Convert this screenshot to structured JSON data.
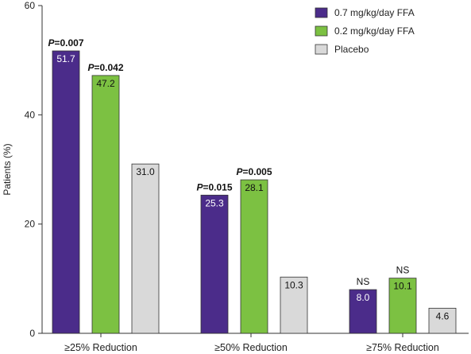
{
  "chart_data": {
    "type": "bar",
    "ylabel": "Patients (%)",
    "xlabel": "",
    "ylim": [
      0,
      60
    ],
    "yticks": [
      0,
      20,
      40,
      60
    ],
    "categories": [
      "≥25% Reduction",
      "≥50% Reduction",
      "≥75% Reduction"
    ],
    "series": [
      {
        "name": "0.7 mg/kg/day FFA",
        "color": "#4b2c8a",
        "label_color": "#ffffff",
        "values": [
          51.7,
          25.3,
          8.0
        ],
        "labels": [
          "51.7",
          "25.3",
          "8.0"
        ]
      },
      {
        "name": "0.2 mg/kg/day FFA",
        "color": "#7cc142",
        "label_color": "#111111",
        "values": [
          47.2,
          28.1,
          10.1
        ],
        "labels": [
          "47.2",
          "28.1",
          "10.1"
        ]
      },
      {
        "name": "Placebo",
        "color": "#d9d9d9",
        "label_color": "#111111",
        "values": [
          31.0,
          10.3,
          4.6
        ],
        "labels": [
          "31.0",
          "10.3",
          "4.6"
        ]
      }
    ],
    "annotations": [
      {
        "category": 0,
        "series": 0,
        "p_label": "P",
        "p_value": "=0.007"
      },
      {
        "category": 0,
        "series": 1,
        "p_label": "P",
        "p_value": "=0.042"
      },
      {
        "category": 1,
        "series": 0,
        "p_label": "P",
        "p_value": "=0.015"
      },
      {
        "category": 1,
        "series": 1,
        "p_label": "P",
        "p_value": "=0.005"
      },
      {
        "category": 2,
        "series": 0,
        "text": "NS"
      },
      {
        "category": 2,
        "series": 1,
        "text": "NS"
      }
    ],
    "legend_position": "top-right",
    "grid": false
  }
}
